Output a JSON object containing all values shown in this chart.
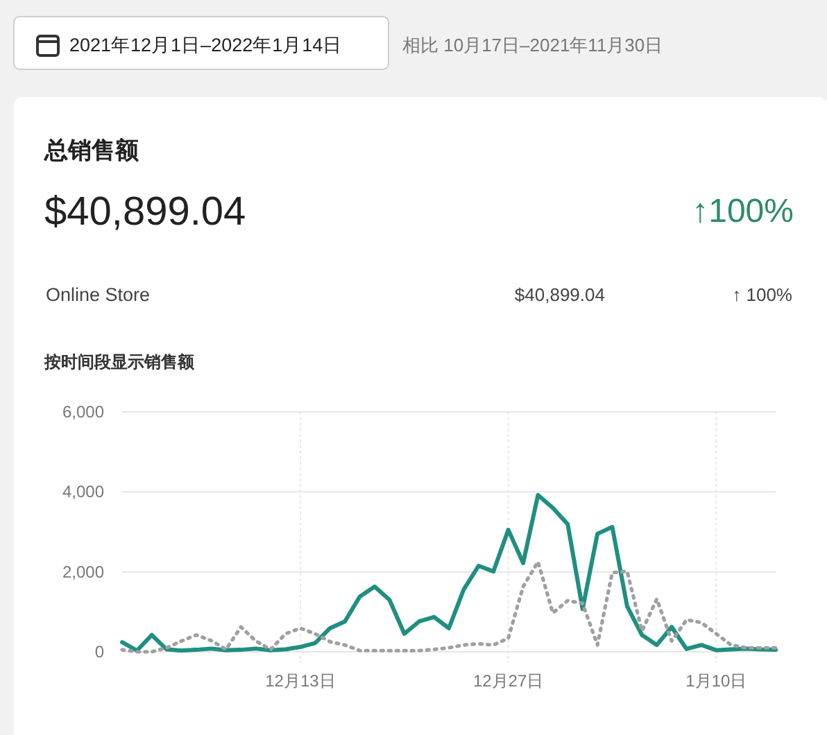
{
  "chart_data": {
    "type": "line",
    "title": "总销售额",
    "subtitle": "按时间段显示销售额",
    "annotations": [
      "2021年12月1日–2022年1月14日",
      "相比 10月17日–2021年11月30日",
      "$40,899.04",
      "↑100%",
      "Online Store",
      "$40,899.04",
      "↑ 100%"
    ],
    "x": [
      "2021-12-01",
      "2021-12-02",
      "2021-12-03",
      "2021-12-04",
      "2021-12-05",
      "2021-12-06",
      "2021-12-07",
      "2021-12-08",
      "2021-12-09",
      "2021-12-10",
      "2021-12-11",
      "2021-12-12",
      "2021-12-13",
      "2021-12-14",
      "2021-12-15",
      "2021-12-16",
      "2021-12-17",
      "2021-12-18",
      "2021-12-19",
      "2021-12-20",
      "2021-12-21",
      "2021-12-22",
      "2021-12-23",
      "2021-12-24",
      "2021-12-25",
      "2021-12-26",
      "2021-12-27",
      "2021-12-28",
      "2021-12-29",
      "2021-12-30",
      "2021-12-31",
      "2022-01-01",
      "2022-01-02",
      "2022-01-03",
      "2022-01-04",
      "2022-01-05",
      "2022-01-06",
      "2022-01-07",
      "2022-01-08",
      "2022-01-09",
      "2022-01-10",
      "2022-01-11",
      "2022-01-12",
      "2022-01-13",
      "2022-01-14"
    ],
    "series": [
      {
        "color": "#1f8f80",
        "line_style": "solid",
        "values": [
          240,
          30,
          420,
          60,
          30,
          50,
          80,
          40,
          50,
          80,
          40,
          60,
          120,
          220,
          590,
          760,
          1380,
          1630,
          1300,
          450,
          760,
          870,
          590,
          1560,
          2150,
          2010,
          3050,
          2220,
          3920,
          3600,
          3190,
          1070,
          2950,
          3120,
          1140,
          420,
          170,
          620,
          70,
          170,
          40,
          60,
          80,
          60,
          50
        ]
      },
      {
        "color": "#a0a0a0",
        "line_style": "dotted",
        "values": [
          50,
          0,
          0,
          100,
          270,
          420,
          280,
          60,
          620,
          270,
          60,
          450,
          590,
          450,
          250,
          170,
          30,
          30,
          30,
          30,
          30,
          60,
          100,
          170,
          200,
          170,
          340,
          1630,
          2250,
          970,
          1280,
          1210,
          170,
          1980,
          2010,
          520,
          1320,
          270,
          800,
          730,
          450,
          170,
          100,
          100,
          100
        ]
      }
    ],
    "xlim": [
      "2021-12-01",
      "2022-01-14"
    ],
    "xticks": [
      {
        "value": "2021-12-13",
        "label": "12月13日"
      },
      {
        "value": "2021-12-27",
        "label": "12月27日"
      },
      {
        "value": "2022-01-10",
        "label": "1月10日"
      }
    ],
    "ylim": [
      0,
      6000
    ],
    "yticks": [
      {
        "value": 0,
        "label": "0"
      },
      {
        "value": 2000,
        "label": "2,000"
      },
      {
        "value": 4000,
        "label": "4,000"
      },
      {
        "value": 6000,
        "label": "6,000"
      }
    ],
    "grid": true,
    "marker": "none"
  }
}
